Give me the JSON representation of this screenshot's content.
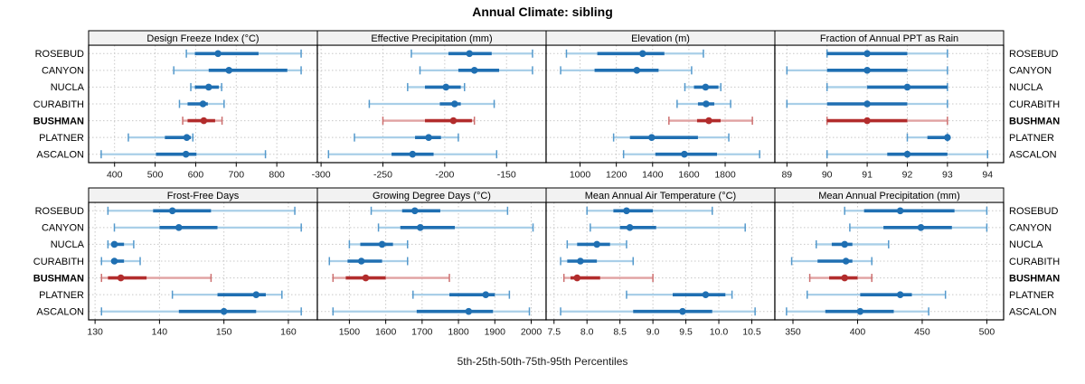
{
  "title": "Annual Climate: sibling",
  "axis_note": "5th-25th-50th-75th-95th Percentiles",
  "colors": {
    "series_blue": "#1f6fb2",
    "series_blue_light": "#a9cfe8",
    "series_blue_cap": "#5499cc",
    "highlight_red": "#b22c2c",
    "highlight_red_light": "#e0a1a1",
    "highlight_red_cap": "#cc6f6f",
    "strip_bg": "#f2f2f2",
    "grid": "#c8c8c8",
    "frame": "#000000",
    "tick_text": "#1a1a1a"
  },
  "chart_data": {
    "type": "percentile-dot-whisker-trellis",
    "layout": "2 rows x 4 cols; sites on y axis of every panel, value on x; dotted grid; gray strip headers; BUSHMAN highlighted red; site labels repeated left and right",
    "percentiles": [
      "5th",
      "25th",
      "50th",
      "75th",
      "95th"
    ],
    "categories": [
      "ROSEBUD",
      "CANYON",
      "NUCLA",
      "CURABITH",
      "BUSHMAN",
      "PLATNER",
      "ASCALON"
    ],
    "highlight_category": "BUSHMAN",
    "panels": [
      {
        "title": "Design Freeze Index (°C)",
        "xlim": [
          336,
          900
        ],
        "ticks": [
          400,
          500,
          600,
          700,
          800
        ],
        "tick_labels": [
          "400",
          "500",
          "600",
          "700",
          "800"
        ],
        "values": {
          "ROSEBUD": [
            577,
            598,
            655,
            755,
            860
          ],
          "CANYON": [
            546,
            632,
            682,
            826,
            860
          ],
          "NUCLA": [
            588,
            598,
            632,
            657,
            664
          ],
          "CURABITH": [
            560,
            580,
            618,
            630,
            670
          ],
          "BUSHMAN": [
            568,
            580,
            620,
            648,
            665
          ],
          "PLATNER": [
            434,
            524,
            578,
            588,
            593
          ],
          "ASCALON": [
            367,
            502,
            576,
            602,
            772
          ]
        }
      },
      {
        "title": "Effective Precipitation (mm)",
        "xlim": [
          -303,
          -118
        ],
        "ticks": [
          -300,
          -250,
          -200,
          -150
        ],
        "tick_labels": [
          "-300",
          "-250",
          "-200",
          "-150"
        ],
        "values": {
          "ROSEBUD": [
            -227,
            -197,
            -180,
            -162,
            -129
          ],
          "CANYON": [
            -220,
            -189,
            -176,
            -156,
            -129
          ],
          "NUCLA": [
            -230,
            -216,
            -199,
            -187,
            -184
          ],
          "CURABITH": [
            -261,
            -204,
            -192,
            -187,
            -160
          ],
          "BUSHMAN": [
            -250,
            -216,
            -193,
            -178,
            -176
          ],
          "PLATNER": [
            -273,
            -224,
            -213,
            -203,
            -189
          ],
          "ASCALON": [
            -294,
            -243,
            -226,
            -209,
            -158
          ]
        }
      },
      {
        "title": "Elevation (m)",
        "xlim": [
          813,
          2074
        ],
        "ticks": [
          1000,
          1200,
          1400,
          1600,
          1800
        ],
        "tick_labels": [
          "1000",
          "1200",
          "1400",
          "1600",
          "1800"
        ],
        "values": {
          "ROSEBUD": [
            925,
            1095,
            1345,
            1465,
            1680
          ],
          "CANYON": [
            893,
            1080,
            1313,
            1433,
            1615
          ],
          "NUCLA": [
            1578,
            1628,
            1692,
            1763,
            1776
          ],
          "CURABITH": [
            1535,
            1650,
            1695,
            1740,
            1830
          ],
          "BUSHMAN": [
            1490,
            1645,
            1710,
            1775,
            1950
          ],
          "PLATNER": [
            1185,
            1275,
            1395,
            1650,
            1820
          ],
          "ASCALON": [
            1240,
            1415,
            1575,
            1755,
            1990
          ]
        }
      },
      {
        "title": "Fraction of Annual PPT as Rain",
        "xlim": [
          88.7,
          94.4
        ],
        "ticks": [
          89,
          90,
          91,
          92,
          93,
          94
        ],
        "tick_labels": [
          "89",
          "90",
          "91",
          "92",
          "93",
          "94"
        ],
        "values": {
          "ROSEBUD": [
            90,
            90,
            91,
            92,
            93
          ],
          "CANYON": [
            89,
            90,
            91,
            92,
            93
          ],
          "NUCLA": [
            90,
            91,
            92,
            93,
            93
          ],
          "CURABITH": [
            89,
            90,
            91,
            92,
            93
          ],
          "BUSHMAN": [
            90,
            90,
            91,
            92,
            93
          ],
          "PLATNER": [
            92,
            92.5,
            93,
            93,
            93
          ],
          "ASCALON": [
            90,
            91.5,
            92,
            93,
            94
          ]
        }
      },
      {
        "title": "Frost-Free Days",
        "xlim": [
          129,
          164.5
        ],
        "ticks": [
          130,
          140,
          150,
          160
        ],
        "tick_labels": [
          "130",
          "140",
          "150",
          "160"
        ],
        "values": {
          "ROSEBUD": [
            132,
            139,
            142,
            148,
            161
          ],
          "CANYON": [
            133,
            140,
            143,
            149,
            162
          ],
          "NUCLA": [
            132,
            132.5,
            133,
            134.5,
            136
          ],
          "CURABITH": [
            131,
            132.5,
            133,
            134.5,
            137
          ],
          "BUSHMAN": [
            131,
            132,
            134,
            138,
            148
          ],
          "PLATNER": [
            142,
            149,
            155,
            156.5,
            159
          ],
          "ASCALON": [
            131,
            143,
            150,
            155,
            162
          ]
        }
      },
      {
        "title": "Growing Degree Days (°C)",
        "xlim": [
          1412,
          2041
        ],
        "ticks": [
          1500,
          1600,
          1700,
          1800,
          1900,
          2000
        ],
        "tick_labels": [
          "1500",
          "1600",
          "1700",
          "1800",
          "1900",
          "2000"
        ],
        "values": {
          "ROSEBUD": [
            1560,
            1645,
            1680,
            1750,
            1935
          ],
          "CANYON": [
            1580,
            1640,
            1695,
            1790,
            2005
          ],
          "NUCLA": [
            1500,
            1530,
            1590,
            1620,
            1660
          ],
          "CURABITH": [
            1445,
            1495,
            1533,
            1590,
            1660
          ],
          "BUSHMAN": [
            1455,
            1490,
            1545,
            1600,
            1775
          ],
          "PLATNER": [
            1675,
            1775,
            1875,
            1900,
            1940
          ],
          "ASCALON": [
            1455,
            1685,
            1828,
            1895,
            1995
          ]
        }
      },
      {
        "title": "Mean Annual Air Temperature (°C)",
        "xlim": [
          7.38,
          10.85
        ],
        "ticks": [
          7.5,
          8.0,
          8.5,
          9.0,
          9.5,
          10.0,
          10.5
        ],
        "tick_labels": [
          "7.5",
          "8.0",
          "8.5",
          "9.0",
          "9.5",
          "10.0",
          "10.5"
        ],
        "values": {
          "ROSEBUD": [
            8.0,
            8.4,
            8.6,
            9.0,
            9.9
          ],
          "CANYON": [
            8.05,
            8.5,
            8.65,
            9.05,
            10.4
          ],
          "NUCLA": [
            7.7,
            7.85,
            8.15,
            8.35,
            8.6
          ],
          "CURABITH": [
            7.6,
            7.7,
            7.9,
            8.15,
            8.7
          ],
          "BUSHMAN": [
            7.65,
            7.75,
            7.85,
            8.2,
            9.0
          ],
          "PLATNER": [
            8.6,
            9.3,
            9.8,
            10.1,
            10.2
          ],
          "ASCALON": [
            7.6,
            8.7,
            9.45,
            9.9,
            10.55
          ]
        }
      },
      {
        "title": "Mean Annual Precipitation (mm)",
        "xlim": [
          336,
          513
        ],
        "ticks": [
          350,
          400,
          450,
          500
        ],
        "tick_labels": [
          "350",
          "400",
          "450",
          "500"
        ],
        "values": {
          "ROSEBUD": [
            390,
            405,
            433,
            475,
            500
          ],
          "CANYON": [
            394,
            420,
            449,
            473,
            500
          ],
          "NUCLA": [
            368,
            380,
            390,
            396,
            424
          ],
          "CURABITH": [
            349,
            369,
            391,
            396,
            411
          ],
          "BUSHMAN": [
            363,
            378,
            390,
            400,
            411
          ],
          "PLATNER": [
            361,
            402,
            433,
            442,
            468
          ],
          "ASCALON": [
            345,
            375,
            402,
            428,
            455
          ]
        }
      }
    ]
  }
}
